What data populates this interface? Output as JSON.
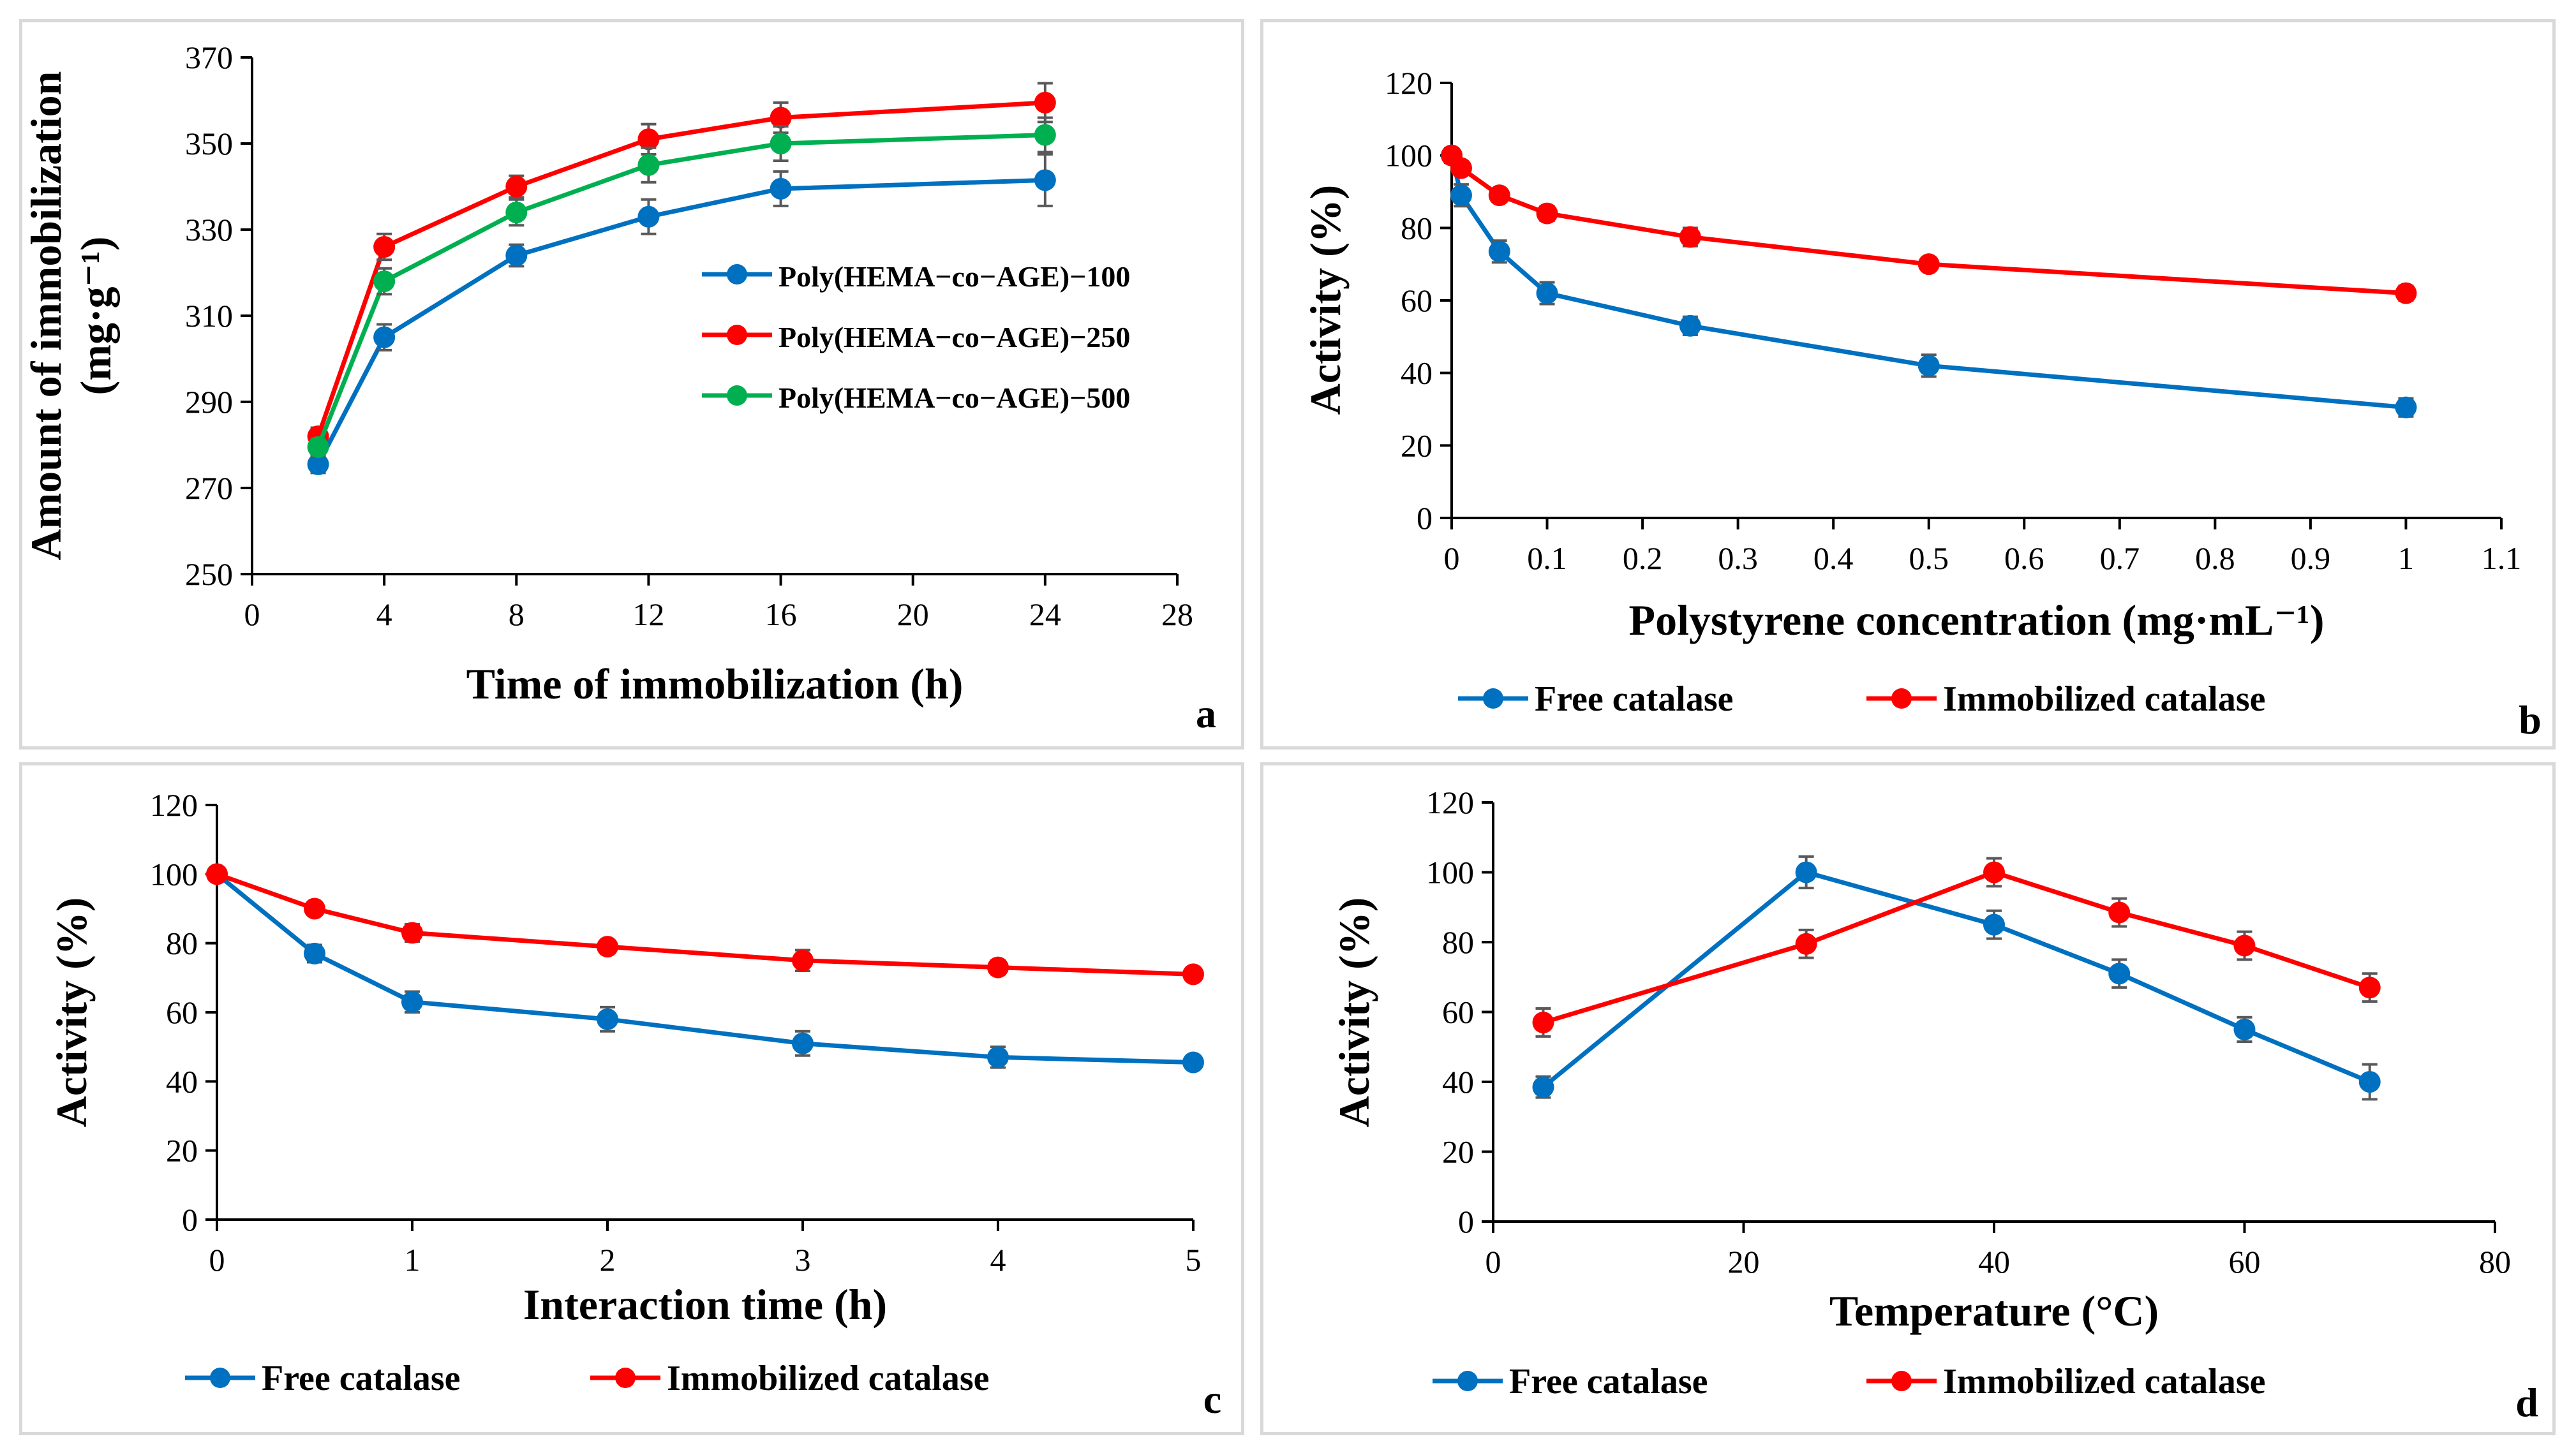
{
  "chart_data": [
    {
      "panel": "a",
      "type": "line",
      "xlabel": "Time of immobilization (h)",
      "ylabel_line1": "Amount of immobilization",
      "ylabel_line2": "(mg·g⁻¹)",
      "xlim": [
        0,
        28
      ],
      "ylim": [
        250,
        370
      ],
      "xticks": [
        0,
        4,
        8,
        12,
        16,
        20,
        24,
        28
      ],
      "yticks": [
        250,
        270,
        290,
        310,
        330,
        350,
        370
      ],
      "x": [
        2,
        4,
        8,
        12,
        16,
        24
      ],
      "series": [
        {
          "name": "Poly(HEMA−co−AGE)−100",
          "color": "#0070C0",
          "values": [
            275.5,
            305,
            324,
            333,
            339.5,
            341.5
          ],
          "errors": [
            2,
            3,
            2.5,
            4,
            4,
            6
          ]
        },
        {
          "name": "Poly(HEMA−co−AGE)−250",
          "color": "#FF0000",
          "values": [
            282,
            326,
            340,
            351,
            356,
            359.5
          ],
          "errors": [
            2,
            3,
            2.5,
            3.5,
            3.5,
            4.5
          ]
        },
        {
          "name": "Poly(HEMA−co−AGE)−500",
          "color": "#00B050",
          "values": [
            279.5,
            318,
            334,
            345,
            350,
            352
          ],
          "errors": [
            2,
            3,
            3,
            4,
            4,
            4
          ]
        }
      ],
      "legend": "inside-right"
    },
    {
      "panel": "b",
      "type": "line",
      "xlabel": "Polystyrene concentration (mg·mL⁻¹)",
      "ylabel": "Activity (%)",
      "xlim": [
        0,
        1.1
      ],
      "ylim": [
        0,
        120
      ],
      "xticks": [
        "0",
        "0.1",
        "0.2",
        "0.3",
        "0.4",
        "0.5",
        "0.6",
        "0.7",
        "0.8",
        "0.9",
        "1",
        "1.1"
      ],
      "yticks": [
        0,
        20,
        40,
        60,
        80,
        100,
        120
      ],
      "x": [
        0,
        0.01,
        0.05,
        0.1,
        0.25,
        0.5,
        1
      ],
      "series": [
        {
          "name": "Free catalase",
          "color": "#0070C0",
          "values": [
            100,
            89,
            73.5,
            62,
            53,
            42,
            30.5
          ],
          "errors": [
            2,
            3,
            3,
            3,
            2.5,
            3,
            2.5
          ]
        },
        {
          "name": "Immobilized catalase",
          "color": "#FF0000",
          "values": [
            100,
            96.5,
            89,
            84,
            77.5,
            70,
            62
          ],
          "errors": [
            1,
            1,
            1,
            2,
            2.5,
            1.5,
            2
          ]
        }
      ],
      "legend": "bottom"
    },
    {
      "panel": "c",
      "type": "line",
      "xlabel": "Interaction time (h)",
      "ylabel": "Activity (%)",
      "xlim": [
        0,
        5
      ],
      "ylim": [
        0,
        120
      ],
      "xticks": [
        0,
        1,
        2,
        3,
        4,
        5
      ],
      "yticks": [
        0,
        20,
        40,
        60,
        80,
        100,
        120
      ],
      "x": [
        0,
        0.5,
        1,
        2,
        3,
        4,
        5
      ],
      "series": [
        {
          "name": "Free catalase",
          "color": "#0070C0",
          "values": [
            100,
            77,
            63,
            58,
            51,
            47,
            45.5
          ],
          "errors": [
            1,
            2.5,
            3,
            3.5,
            3.5,
            3,
            1.5
          ]
        },
        {
          "name": "Immobilized catalase",
          "color": "#FF0000",
          "values": [
            100,
            90,
            83,
            79,
            75,
            73,
            71
          ],
          "errors": [
            1,
            1.5,
            2.5,
            1.5,
            3,
            2,
            1.5
          ]
        }
      ],
      "legend": "bottom"
    },
    {
      "panel": "d",
      "type": "line",
      "xlabel": "Temperature (°C)",
      "ylabel": "Activity (%)",
      "xlim": [
        0,
        80
      ],
      "ylim": [
        0,
        120
      ],
      "xticks": [
        0,
        20,
        40,
        60,
        80
      ],
      "yticks": [
        0,
        20,
        40,
        60,
        80,
        100,
        120
      ],
      "x": [
        4,
        25,
        40,
        50,
        60,
        70
      ],
      "series": [
        {
          "name": "Free catalase",
          "color": "#0070C0",
          "values": [
            38.5,
            100,
            85,
            71,
            55,
            40
          ],
          "errors": [
            3,
            4.5,
            4,
            4,
            3.5,
            5
          ]
        },
        {
          "name": "Immobilized catalase",
          "color": "#FF0000",
          "values": [
            57,
            79.5,
            100,
            88.5,
            79,
            67
          ],
          "errors": [
            4,
            4,
            4,
            4,
            4,
            4
          ]
        }
      ],
      "legend": "bottom"
    }
  ]
}
